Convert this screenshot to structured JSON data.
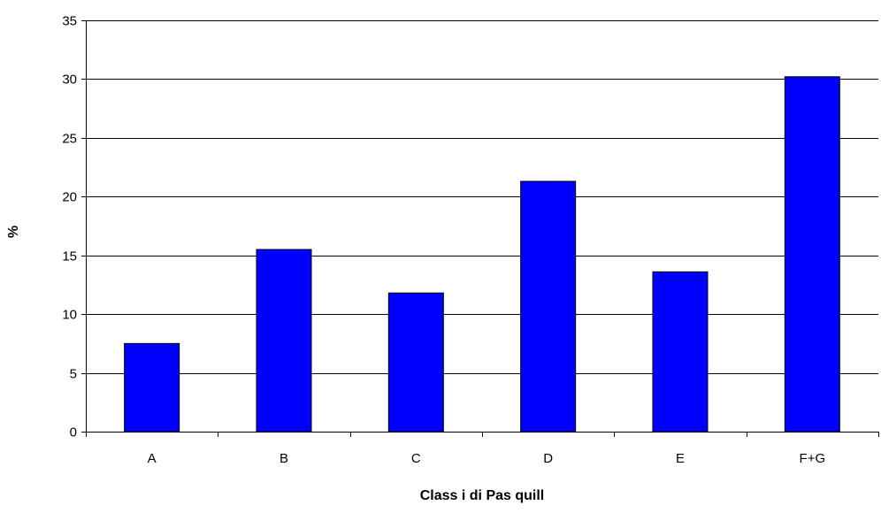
{
  "chart_data": {
    "type": "bar",
    "title": "",
    "xlabel": "Class i di Pas quill",
    "ylabel": "%",
    "categories": [
      "A",
      "B",
      "C",
      "D",
      "E",
      "F+G"
    ],
    "values": [
      7.5,
      15.5,
      11.8,
      21.3,
      13.6,
      30.2
    ],
    "ylim": [
      0,
      35
    ],
    "yticks": [
      0,
      5,
      10,
      15,
      20,
      25,
      30,
      35
    ],
    "grid": true,
    "legend": "none",
    "colors": {
      "bar": "#0000ff",
      "bar_edge": "#000000",
      "grid": "#000000"
    }
  }
}
